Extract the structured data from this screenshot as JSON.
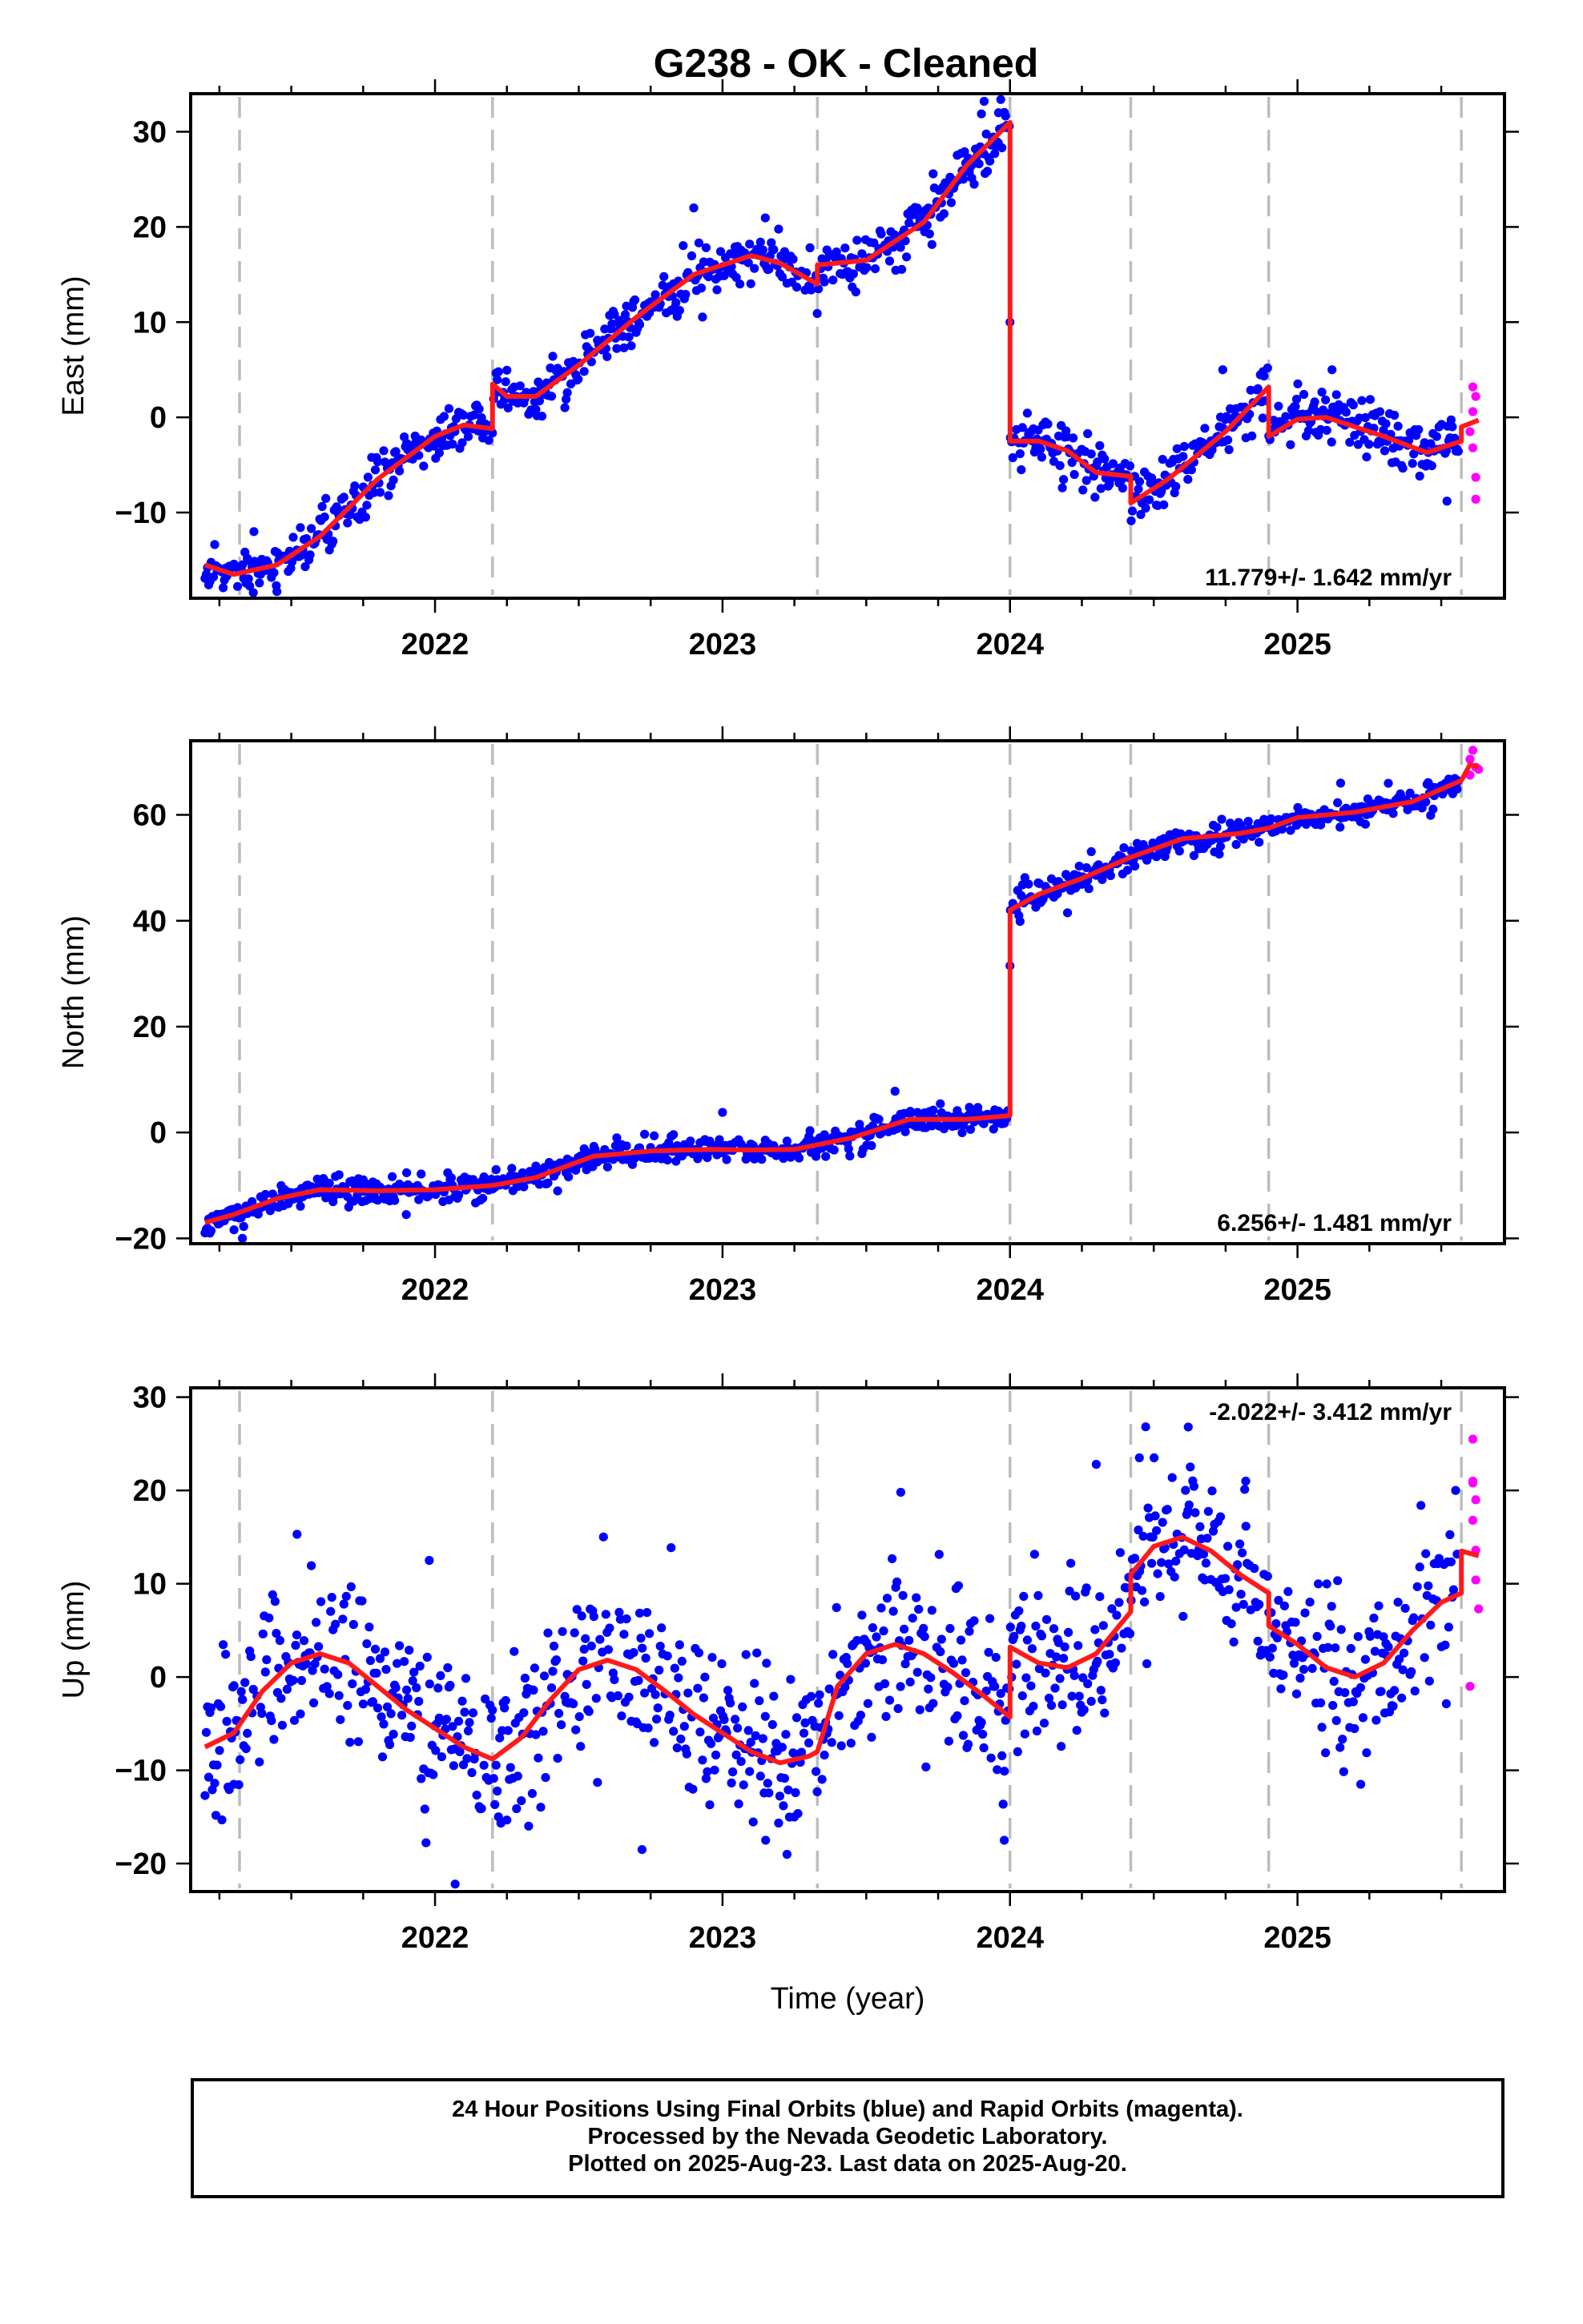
{
  "title": "G238  - OK - Cleaned",
  "x_axis_title": "Time (year)",
  "colors": {
    "final_orbits": "#0000ff",
    "rapid_orbits": "#ff00ff",
    "model_fit": "#ff1a1a",
    "event_lines": "#bdbdbd"
  },
  "footer": {
    "line1": "24 Hour Positions Using Final Orbits (blue) and Rapid Orbits (magenta).",
    "line2": "Processed by the Nevada Geodetic Laboratory.",
    "line3": "Plotted on 2025-Aug-23. Last data on 2025-Aug-20."
  },
  "chart_data": [
    {
      "type": "scatter",
      "component": "east",
      "ylabel": "East (mm)",
      "rate_label": "11.779+/- 1.642 mm/yr",
      "rate_position": "bottom-right",
      "xlim": [
        2021.15,
        2025.72
      ],
      "ylim": [
        -19,
        34
      ],
      "xticks": [
        2022,
        2023,
        2024,
        2025
      ],
      "yticks": [
        -10,
        0,
        10,
        20,
        30
      ],
      "event_lines": [
        2021.32,
        2022.2,
        2023.33,
        2024.0,
        2024.42,
        2024.9,
        2025.57
      ],
      "fit": [
        [
          2021.2,
          -15.5
        ],
        [
          2021.3,
          -16.5
        ],
        [
          2021.45,
          -15.5
        ],
        [
          2021.6,
          -12.5
        ],
        [
          2021.8,
          -6.5
        ],
        [
          2022.0,
          -2.0
        ],
        [
          2022.1,
          -0.8
        ],
        [
          2022.2,
          -1.2
        ],
        [
          2022.2,
          3.5
        ],
        [
          2022.25,
          2.2
        ],
        [
          2022.35,
          2.2
        ],
        [
          2022.5,
          5.5
        ],
        [
          2022.7,
          10.5
        ],
        [
          2022.9,
          15.0
        ],
        [
          2023.1,
          17.0
        ],
        [
          2023.2,
          16.2
        ],
        [
          2023.33,
          14.0
        ],
        [
          2023.33,
          16.0
        ],
        [
          2023.5,
          16.5
        ],
        [
          2023.7,
          20.5
        ],
        [
          2023.85,
          26.5
        ],
        [
          2024.0,
          31.0
        ],
        [
          2024.0,
          -2.5
        ],
        [
          2024.1,
          -2.5
        ],
        [
          2024.2,
          -3.5
        ],
        [
          2024.3,
          -5.8
        ],
        [
          2024.42,
          -6.2
        ],
        [
          2024.42,
          -9.0
        ],
        [
          2024.55,
          -6.5
        ],
        [
          2024.75,
          -1.5
        ],
        [
          2024.9,
          3.2
        ],
        [
          2024.9,
          -2.0
        ],
        [
          2025.0,
          -0.2
        ],
        [
          2025.1,
          0.0
        ],
        [
          2025.3,
          -2.0
        ],
        [
          2025.45,
          -3.7
        ],
        [
          2025.57,
          -2.5
        ],
        [
          2025.57,
          -1.0
        ],
        [
          2025.63,
          -0.3
        ]
      ],
      "noise": 1.3,
      "outliers": [
        [
          2023.91,
          33.2
        ],
        [
          2023.96,
          32.0
        ],
        [
          2024.0,
          10.0
        ],
        [
          2022.9,
          22.0
        ],
        [
          2021.37,
          -12.0
        ],
        [
          2025.12,
          5.0
        ],
        [
          2024.88,
          4.8
        ],
        [
          2024.74,
          5.0
        ],
        [
          2025.52,
          -8.8
        ],
        [
          2021.45,
          -18.3
        ]
      ],
      "rapid_points": [
        [
          2025.61,
          3.2
        ],
        [
          2025.61,
          0.6
        ],
        [
          2025.6,
          -1.5
        ],
        [
          2025.61,
          -3.2
        ],
        [
          2025.62,
          -6.3
        ],
        [
          2025.62,
          -8.6
        ],
        [
          2025.62,
          2.2
        ]
      ]
    },
    {
      "type": "scatter",
      "component": "north",
      "ylabel": "North (mm)",
      "rate_label": "6.256+/- 1.481 mm/yr",
      "rate_position": "bottom-right",
      "xlim": [
        2021.15,
        2025.72
      ],
      "ylim": [
        -21,
        74
      ],
      "xticks": [
        2022,
        2023,
        2024,
        2025
      ],
      "yticks": [
        -20,
        0,
        20,
        40,
        60
      ],
      "event_lines": [
        2021.32,
        2022.2,
        2023.33,
        2024.0,
        2024.42,
        2024.9,
        2025.57
      ],
      "fit": [
        [
          2021.2,
          -17.0
        ],
        [
          2021.3,
          -15.5
        ],
        [
          2021.45,
          -12.5
        ],
        [
          2021.6,
          -10.8
        ],
        [
          2021.8,
          -11.0
        ],
        [
          2022.0,
          -10.8
        ],
        [
          2022.2,
          -10.0
        ],
        [
          2022.35,
          -8.5
        ],
        [
          2022.55,
          -4.5
        ],
        [
          2022.75,
          -3.5
        ],
        [
          2022.95,
          -3.2
        ],
        [
          2023.1,
          -3.3
        ],
        [
          2023.25,
          -3.2
        ],
        [
          2023.45,
          -1.0
        ],
        [
          2023.65,
          2.5
        ],
        [
          2023.85,
          2.5
        ],
        [
          2024.0,
          3.2
        ],
        [
          2024.0,
          42.0
        ],
        [
          2024.1,
          45.0
        ],
        [
          2024.25,
          48.0
        ],
        [
          2024.42,
          52.0
        ],
        [
          2024.6,
          55.5
        ],
        [
          2024.8,
          56.5
        ],
        [
          2024.9,
          57.5
        ],
        [
          2025.0,
          59.5
        ],
        [
          2025.2,
          60.5
        ],
        [
          2025.4,
          62.5
        ],
        [
          2025.57,
          66.5
        ],
        [
          2025.6,
          69.5
        ],
        [
          2025.63,
          69.0
        ]
      ],
      "noise": 1.2,
      "outliers": [
        [
          2024.0,
          31.5
        ],
        [
          2023.0,
          3.8
        ],
        [
          2021.33,
          -20.0
        ],
        [
          2021.9,
          -15.5
        ],
        [
          2022.6,
          -6.5
        ],
        [
          2024.2,
          41.5
        ],
        [
          2023.6,
          7.8
        ],
        [
          2025.15,
          66.0
        ],
        [
          2025.54,
          64.0
        ]
      ],
      "rapid_points": [
        [
          2025.61,
          72.2
        ],
        [
          2025.6,
          70.5
        ],
        [
          2025.62,
          69.0
        ],
        [
          2025.63,
          68.6
        ],
        [
          2025.6,
          67.5
        ]
      ]
    },
    {
      "type": "scatter",
      "component": "up",
      "ylabel": "Up (mm)",
      "rate_label": "-2.022+/- 3.412 mm/yr",
      "rate_position": "top-right",
      "xlim": [
        2021.15,
        2025.72
      ],
      "ylim": [
        -23,
        31
      ],
      "xticks": [
        2022,
        2023,
        2024,
        2025
      ],
      "yticks": [
        -20,
        -10,
        0,
        10,
        20,
        30
      ],
      "event_lines": [
        2021.32,
        2022.2,
        2023.33,
        2024.0,
        2024.42,
        2024.9,
        2025.57
      ],
      "fit": [
        [
          2021.2,
          -7.5
        ],
        [
          2021.3,
          -6.0
        ],
        [
          2021.4,
          -1.5
        ],
        [
          2021.5,
          1.5
        ],
        [
          2021.6,
          2.5
        ],
        [
          2021.7,
          1.5
        ],
        [
          2021.8,
          -1.0
        ],
        [
          2021.9,
          -3.5
        ],
        [
          2022.0,
          -5.5
        ],
        [
          2022.1,
          -7.5
        ],
        [
          2022.2,
          -8.8
        ],
        [
          2022.3,
          -6.5
        ],
        [
          2022.4,
          -2.5
        ],
        [
          2022.5,
          0.8
        ],
        [
          2022.6,
          1.8
        ],
        [
          2022.7,
          0.8
        ],
        [
          2022.8,
          -1.5
        ],
        [
          2022.9,
          -4.0
        ],
        [
          2023.0,
          -6.0
        ],
        [
          2023.1,
          -8.0
        ],
        [
          2023.2,
          -9.2
        ],
        [
          2023.3,
          -8.5
        ],
        [
          2023.33,
          -8.0
        ],
        [
          2023.4,
          -1.0
        ],
        [
          2023.5,
          2.5
        ],
        [
          2023.6,
          3.5
        ],
        [
          2023.7,
          2.5
        ],
        [
          2023.8,
          0.5
        ],
        [
          2023.9,
          -1.8
        ],
        [
          2024.0,
          -4.3
        ],
        [
          2024.0,
          3.2
        ],
        [
          2024.1,
          1.5
        ],
        [
          2024.2,
          1.0
        ],
        [
          2024.3,
          2.5
        ],
        [
          2024.42,
          7.0
        ],
        [
          2024.42,
          11.0
        ],
        [
          2024.5,
          14.0
        ],
        [
          2024.6,
          15.0
        ],
        [
          2024.7,
          13.5
        ],
        [
          2024.8,
          11.0
        ],
        [
          2024.9,
          9.0
        ],
        [
          2024.9,
          5.5
        ],
        [
          2025.0,
          3.5
        ],
        [
          2025.1,
          1.0
        ],
        [
          2025.2,
          0.0
        ],
        [
          2025.3,
          1.5
        ],
        [
          2025.4,
          5.0
        ],
        [
          2025.5,
          8.0
        ],
        [
          2025.57,
          9.0
        ],
        [
          2025.57,
          13.5
        ],
        [
          2025.63,
          13.0
        ]
      ],
      "noise": 4.2,
      "outliers": [
        [
          2022.07,
          -22.2
        ],
        [
          2021.98,
          12.5
        ],
        [
          2021.3,
          -11.5
        ],
        [
          2021.52,
          15.3
        ],
        [
          2022.72,
          -18.5
        ],
        [
          2023.62,
          19.8
        ],
        [
          2024.62,
          26.8
        ],
        [
          2024.45,
          23.5
        ],
        [
          2024.3,
          22.8
        ],
        [
          2025.22,
          -11.5
        ],
        [
          2023.98,
          -17.5
        ],
        [
          2023.15,
          -17.5
        ],
        [
          2024.82,
          21.0
        ],
        [
          2025.55,
          20.0
        ]
      ],
      "rapid_points": [
        [
          2025.61,
          25.5
        ],
        [
          2025.61,
          21.0
        ],
        [
          2025.61,
          20.8
        ],
        [
          2025.62,
          19.0
        ],
        [
          2025.61,
          16.8
        ],
        [
          2025.62,
          13.6
        ],
        [
          2025.62,
          10.4
        ],
        [
          2025.63,
          7.3
        ],
        [
          2025.6,
          -1.0
        ]
      ]
    }
  ]
}
